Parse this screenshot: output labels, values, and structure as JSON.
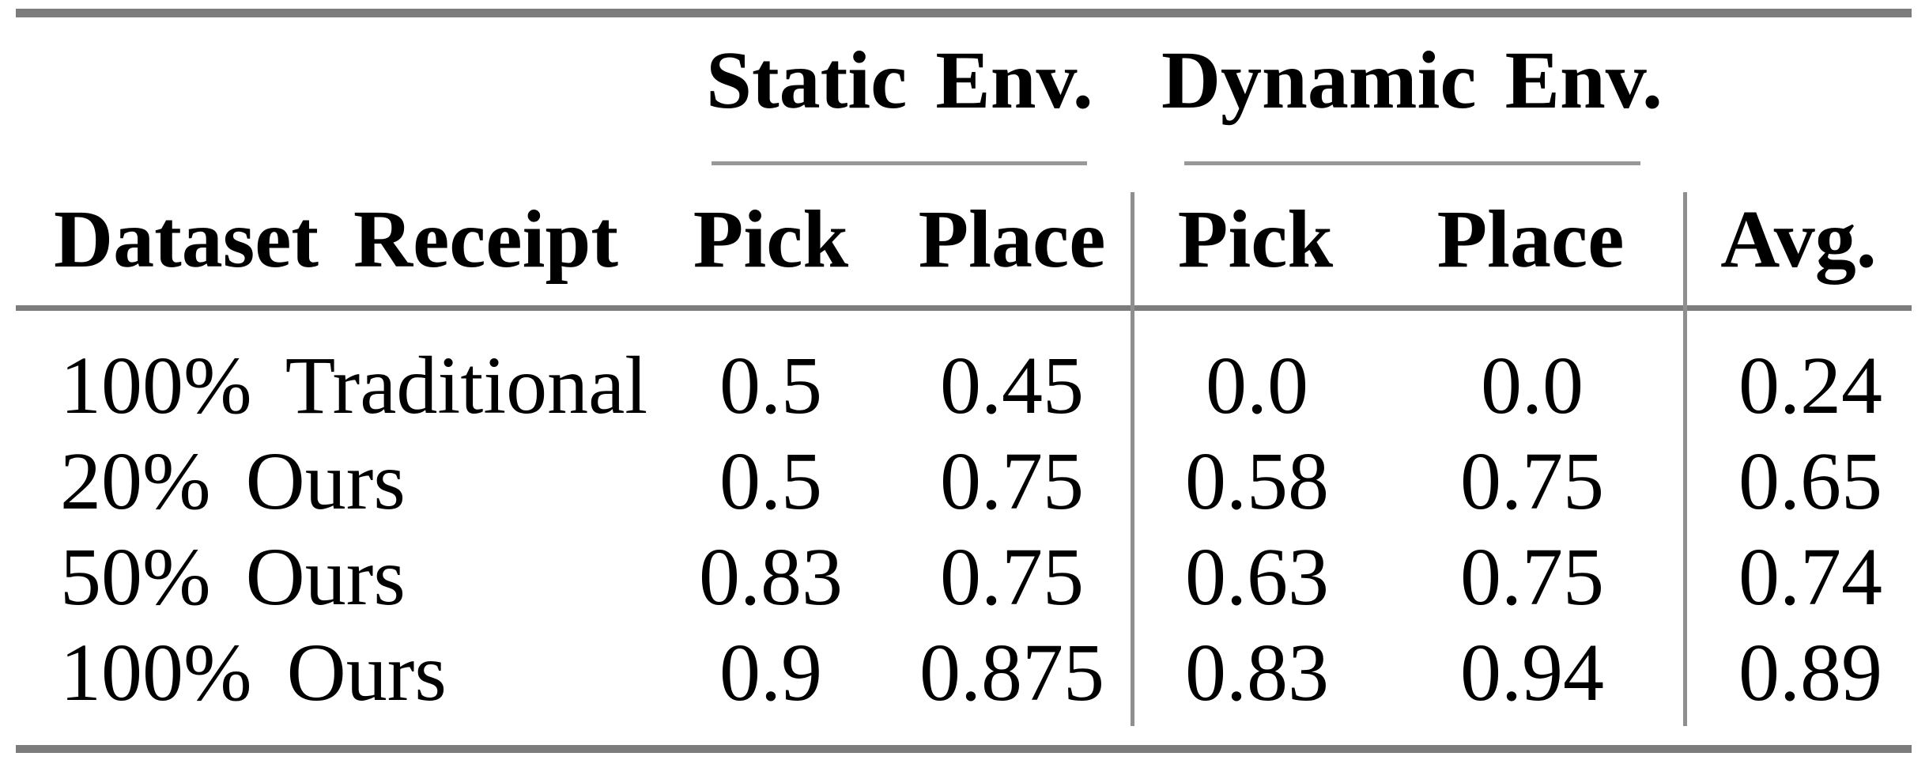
{
  "table": {
    "group_headers": {
      "static": "Static Env.",
      "dynamic": "Dynamic Env."
    },
    "column_headers": {
      "row_label": "Dataset Receipt",
      "static_pick": "Pick",
      "static_place": "Place",
      "dynamic_pick": "Pick",
      "dynamic_place": "Place",
      "avg": "Avg."
    },
    "rows": [
      {
        "label": "100% Traditional",
        "static_pick": "0.5",
        "static_place": "0.45",
        "dynamic_pick": "0.0",
        "dynamic_place": "0.0",
        "avg": "0.24"
      },
      {
        "label": "20% Ours",
        "static_pick": "0.5",
        "static_place": "0.75",
        "dynamic_pick": "0.58",
        "dynamic_place": "0.75",
        "avg": "0.65"
      },
      {
        "label": "50% Ours",
        "static_pick": "0.83",
        "static_place": "0.75",
        "dynamic_pick": "0.63",
        "dynamic_place": "0.75",
        "avg": "0.74"
      },
      {
        "label": "100% Ours",
        "static_pick": "0.9",
        "static_place": "0.875",
        "dynamic_pick": "0.83",
        "dynamic_place": "0.94",
        "avg": "0.89"
      }
    ],
    "colors": {
      "text": "#000000",
      "rule_heavy": "#7c7c7c",
      "rule_light": "#989898",
      "background": "#ffffff"
    }
  },
  "chart_data": {
    "type": "table",
    "title": "",
    "column_groups": [
      {
        "label": "Static Env.",
        "columns": [
          "Pick",
          "Place"
        ]
      },
      {
        "label": "Dynamic Env.",
        "columns": [
          "Pick",
          "Place"
        ]
      }
    ],
    "columns": [
      "Dataset Receipt",
      "Static Env. Pick",
      "Static Env. Place",
      "Dynamic Env. Pick",
      "Dynamic Env. Place",
      "Avg."
    ],
    "rows": [
      [
        "100% Traditional",
        0.5,
        0.45,
        0.0,
        0.0,
        0.24
      ],
      [
        "20% Ours",
        0.5,
        0.75,
        0.58,
        0.75,
        0.65
      ],
      [
        "50% Ours",
        0.83,
        0.75,
        0.63,
        0.75,
        0.74
      ],
      [
        "100% Ours",
        0.9,
        0.875,
        0.83,
        0.94,
        0.89
      ]
    ],
    "layout": {
      "grid": "off",
      "heavy_rules": [
        "top",
        "below-header",
        "bottom"
      ],
      "group_underlines": [
        "Static Env.",
        "Dynamic Env."
      ],
      "vertical_separators": [
        "after Static Env. Place",
        "after Dynamic Env. Place"
      ]
    }
  }
}
